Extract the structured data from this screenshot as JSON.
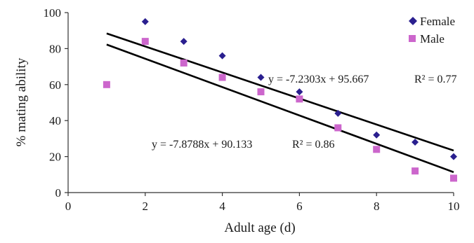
{
  "chart_data": {
    "type": "scatter",
    "title": "",
    "xlabel": "Adult age (d)",
    "ylabel": "% mating ability",
    "xlim": [
      0,
      10
    ],
    "ylim": [
      0,
      100
    ],
    "xticks": [
      "0",
      "2",
      "4",
      "6",
      "8",
      "10"
    ],
    "yticks": [
      "0",
      "20",
      "40",
      "60",
      "80",
      "100"
    ],
    "legend_position": "top-right",
    "series": [
      {
        "name": "Female",
        "marker": "diamond",
        "color": "#2a1f8f",
        "x": [
          2,
          3,
          4,
          5,
          6,
          7,
          8,
          9,
          10
        ],
        "y": [
          95,
          84,
          76,
          64,
          56,
          44,
          32,
          28,
          20
        ],
        "trendline": {
          "slope": -7.2303,
          "intercept": 95.667,
          "x_range": [
            1,
            10
          ],
          "equation": "y = -7.2303x + 95.667",
          "r2": "R² = 0.77"
        }
      },
      {
        "name": "Male",
        "marker": "square",
        "color": "#cc66cc",
        "x": [
          1,
          2,
          3,
          4,
          5,
          6,
          7,
          8,
          9,
          10
        ],
        "y": [
          60,
          84,
          72,
          64,
          56,
          52,
          36,
          24,
          12,
          8
        ],
        "trendline": {
          "slope": -7.8788,
          "intercept": 90.133,
          "x_range": [
            1,
            10
          ],
          "equation": "y = -7.8788x + 90.133",
          "r2": "R² = 0.86"
        }
      }
    ]
  }
}
